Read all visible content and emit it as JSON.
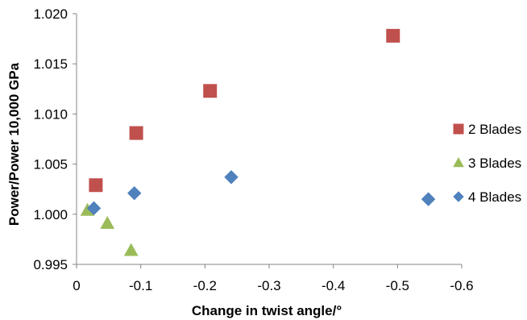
{
  "chart_data": {
    "type": "scatter",
    "title": "",
    "xlabel": "Change in twist angle/°",
    "ylabel": "Power/Power 10,000 GPa",
    "xlim": [
      0,
      -0.6
    ],
    "ylim": [
      0.995,
      1.02
    ],
    "x_ticks": [
      "0",
      "-0.1",
      "-0.2",
      "-0.3",
      "-0.4",
      "-0.5",
      "-0.6"
    ],
    "y_ticks": [
      "0.995",
      "1.000",
      "1.005",
      "1.010",
      "1.015",
      "1.020"
    ],
    "grid": false,
    "legend_position": "right",
    "series": [
      {
        "name": "2 Blades",
        "marker": "square",
        "color": "#C0504D",
        "points": [
          {
            "x": -0.03,
            "y": 1.0029
          },
          {
            "x": -0.093,
            "y": 1.0081
          },
          {
            "x": -0.208,
            "y": 1.0123
          },
          {
            "x": -0.493,
            "y": 1.0178
          }
        ]
      },
      {
        "name": "3 Blades",
        "marker": "triangle",
        "color": "#9BBB59",
        "points": [
          {
            "x": -0.017,
            "y": 1.0004
          },
          {
            "x": -0.048,
            "y": 0.9991
          },
          {
            "x": -0.085,
            "y": 0.9964
          }
        ]
      },
      {
        "name": "4 Blades",
        "marker": "diamond",
        "color": "#4F81BD",
        "points": [
          {
            "x": -0.027,
            "y": 1.0006
          },
          {
            "x": -0.09,
            "y": 1.0021
          },
          {
            "x": -0.241,
            "y": 1.0037
          },
          {
            "x": -0.548,
            "y": 1.0015
          }
        ]
      }
    ]
  }
}
